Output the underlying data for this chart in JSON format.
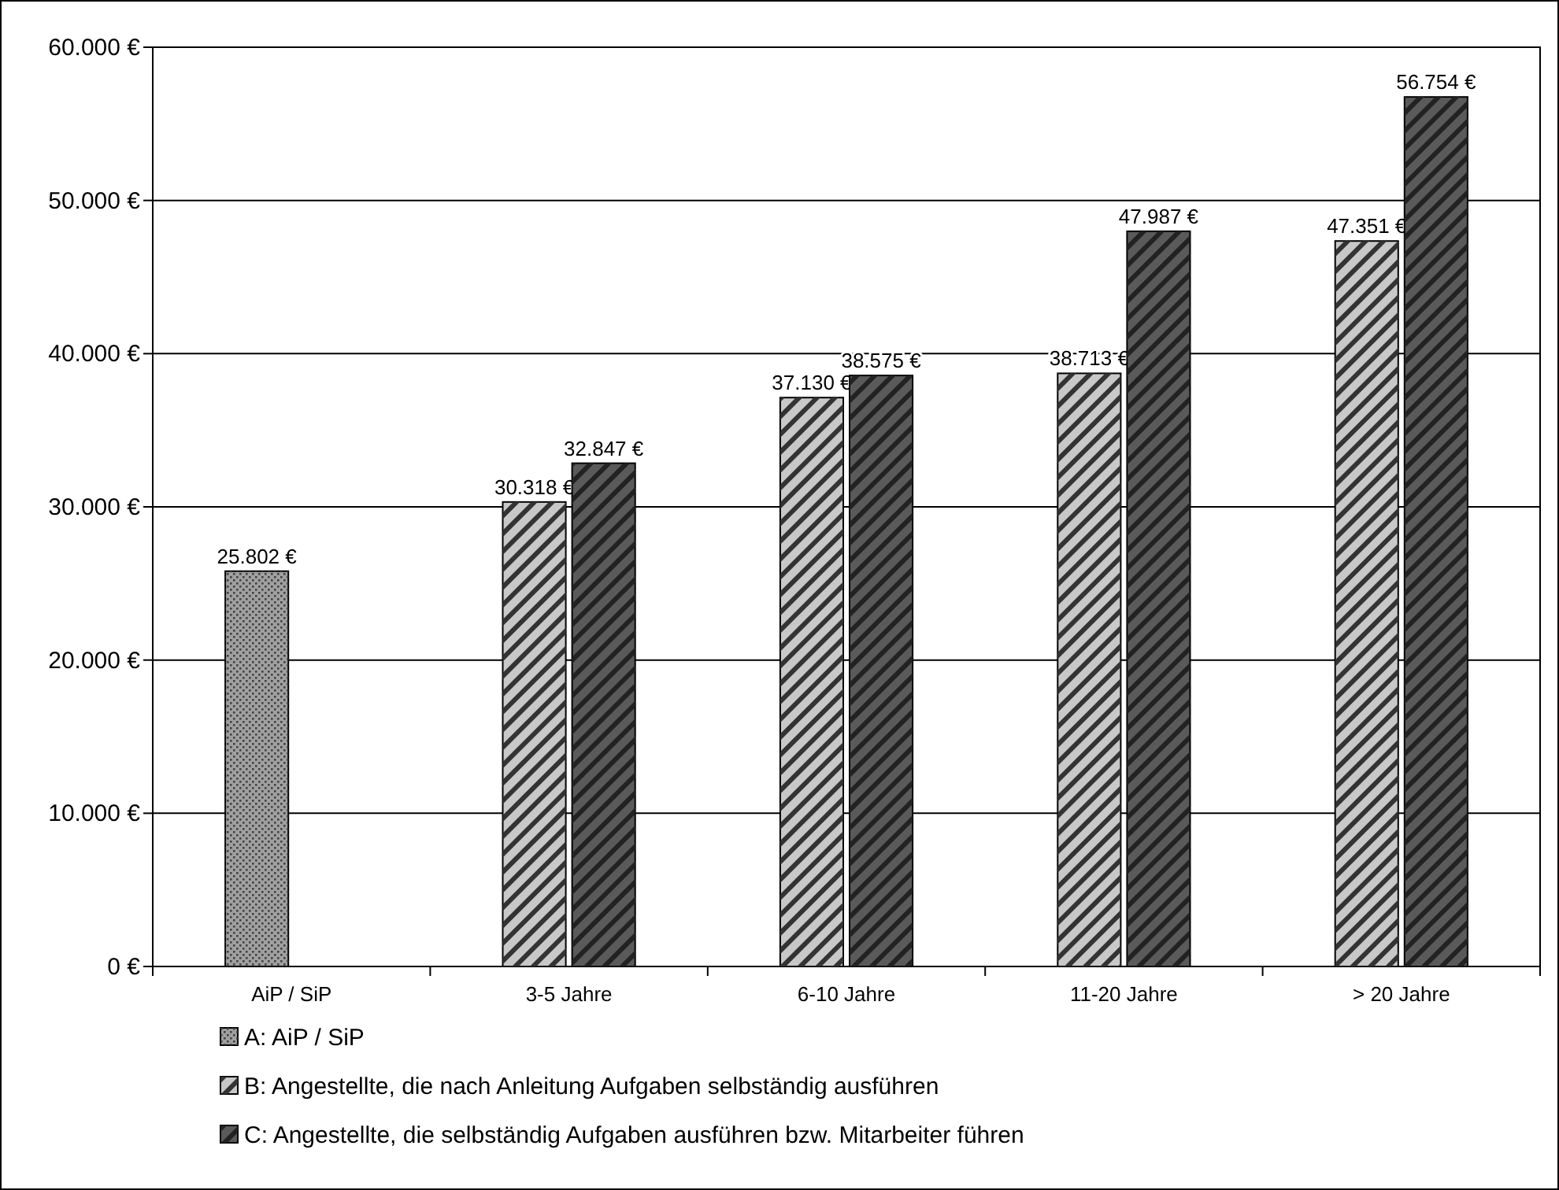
{
  "chart_data": {
    "type": "bar",
    "categories": [
      "AiP / SiP",
      "3-5 Jahre",
      "6-10 Jahre",
      "11-20 Jahre",
      "> 20 Jahre"
    ],
    "series": [
      {
        "name": "A: AiP / SiP",
        "color": "#a0a0a0",
        "values": [
          25802,
          null,
          null,
          null,
          null
        ],
        "value_labels": [
          "25.802 €",
          null,
          null,
          null,
          null
        ]
      },
      {
        "name": "B: Angestellte, die nach Anleitung Aufgaben selbständig ausführen",
        "color": "#c8c8c8",
        "values": [
          null,
          30318,
          37130,
          38713,
          47351
        ],
        "value_labels": [
          null,
          "30.318 €",
          "37.130 €",
          "38.713 €",
          "47.351 €"
        ]
      },
      {
        "name": "C: Angestellte, die selbständig Aufgaben ausführen bzw. Mitarbeiter führen",
        "color": "#5a5a5a",
        "values": [
          null,
          32847,
          38575,
          47987,
          56754
        ],
        "value_labels": [
          null,
          "32.847 €",
          "38.575 €",
          "47.987 €",
          "56.754 €"
        ]
      }
    ],
    "ylim": [
      0,
      60000
    ],
    "yticks": [
      {
        "value": 0,
        "label": "0 €"
      },
      {
        "value": 10000,
        "label": "10.000 €"
      },
      {
        "value": 20000,
        "label": "20.000 €"
      },
      {
        "value": 30000,
        "label": "30.000 €"
      },
      {
        "value": 40000,
        "label": "40.000 €"
      },
      {
        "value": 50000,
        "label": "50.000 €"
      },
      {
        "value": 60000,
        "label": "60.000 €"
      }
    ],
    "grid": "y",
    "legend": "bottom"
  }
}
